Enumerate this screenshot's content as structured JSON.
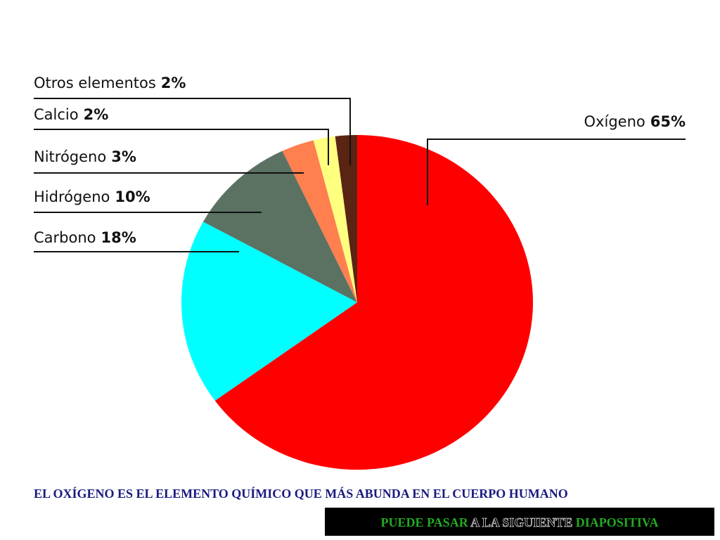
{
  "chart_data": {
    "type": "pie",
    "categories": [
      "Oxígeno",
      "Carbono",
      "Hidrógeno",
      "Nitrógeno",
      "Calcio",
      "Otros elementos"
    ],
    "values": [
      65,
      18,
      10,
      3,
      2,
      2
    ],
    "value_labels": [
      "65%",
      "18%",
      "10%",
      "3%",
      "2%",
      "2%"
    ],
    "colors": [
      "#ff0000",
      "#00ffff",
      "#5b7262",
      "#ff7f4f",
      "#ffff80",
      "#5a2412"
    ]
  },
  "caption": "EL OXÍGENO ES EL ELEMENTO QUÍMICO QUE MÁS ABUNDA EN EL CUERPO HUMANO",
  "button": {
    "parts": [
      "PUEDE PASAR",
      "A LA SIGUIENTE",
      "DIAPOSITIVA"
    ]
  }
}
